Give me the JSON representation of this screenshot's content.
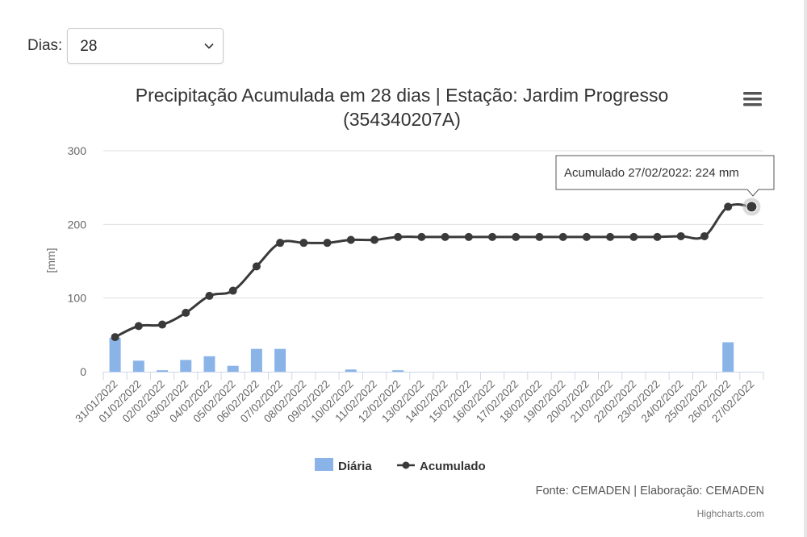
{
  "filter": {
    "label": "Dias:",
    "selected": "28"
  },
  "chart_data": {
    "type": "bar+line",
    "title_line1": "Precipitação Acumulada em 28 dias | Estação: Jardim Progresso",
    "title_line2": "(354340207A)",
    "ylabel": "[mm]",
    "ylim": [
      0,
      300
    ],
    "yticks": [
      0,
      100,
      200,
      300
    ],
    "grid": true,
    "categories": [
      "31/01/2022",
      "01/02/2022",
      "02/02/2022",
      "03/02/2022",
      "04/02/2022",
      "05/02/2022",
      "06/02/2022",
      "07/02/2022",
      "08/02/2022",
      "09/02/2022",
      "10/02/2022",
      "11/02/2022",
      "12/02/2022",
      "13/02/2022",
      "14/02/2022",
      "15/02/2022",
      "16/02/2022",
      "17/02/2022",
      "18/02/2022",
      "19/02/2022",
      "20/02/2022",
      "21/02/2022",
      "22/02/2022",
      "23/02/2022",
      "24/02/2022",
      "25/02/2022",
      "26/02/2022",
      "27/02/2022"
    ],
    "series": [
      {
        "name": "Diária",
        "type": "bar",
        "color": "#8ab4e8",
        "values": [
          46,
          15,
          2,
          16,
          21,
          8,
          31,
          31,
          0,
          0,
          3,
          0,
          2,
          0,
          0,
          0,
          0,
          0,
          0,
          0,
          0,
          0,
          0,
          0,
          0,
          0,
          40,
          0
        ]
      },
      {
        "name": "Acumulado",
        "type": "line",
        "color": "#3a3a3a",
        "values": [
          47,
          62,
          64,
          80,
          103,
          110,
          143,
          175,
          175,
          175,
          179,
          179,
          183,
          183,
          183,
          183,
          183,
          183,
          183,
          183,
          183,
          183,
          183,
          183,
          184,
          184,
          224,
          224
        ]
      }
    ],
    "legend": [
      "Diária",
      "Acumulado"
    ],
    "legend_position": "bottom-center",
    "tooltip": "Acumulado 27/02/2022: 224 mm",
    "source": "Fonte: CEMADEN | Elaboração: CEMADEN",
    "credit": "Highcharts.com"
  },
  "menu_icon": "hamburger-menu-icon",
  "chevron_icon": "chevron-down-icon"
}
